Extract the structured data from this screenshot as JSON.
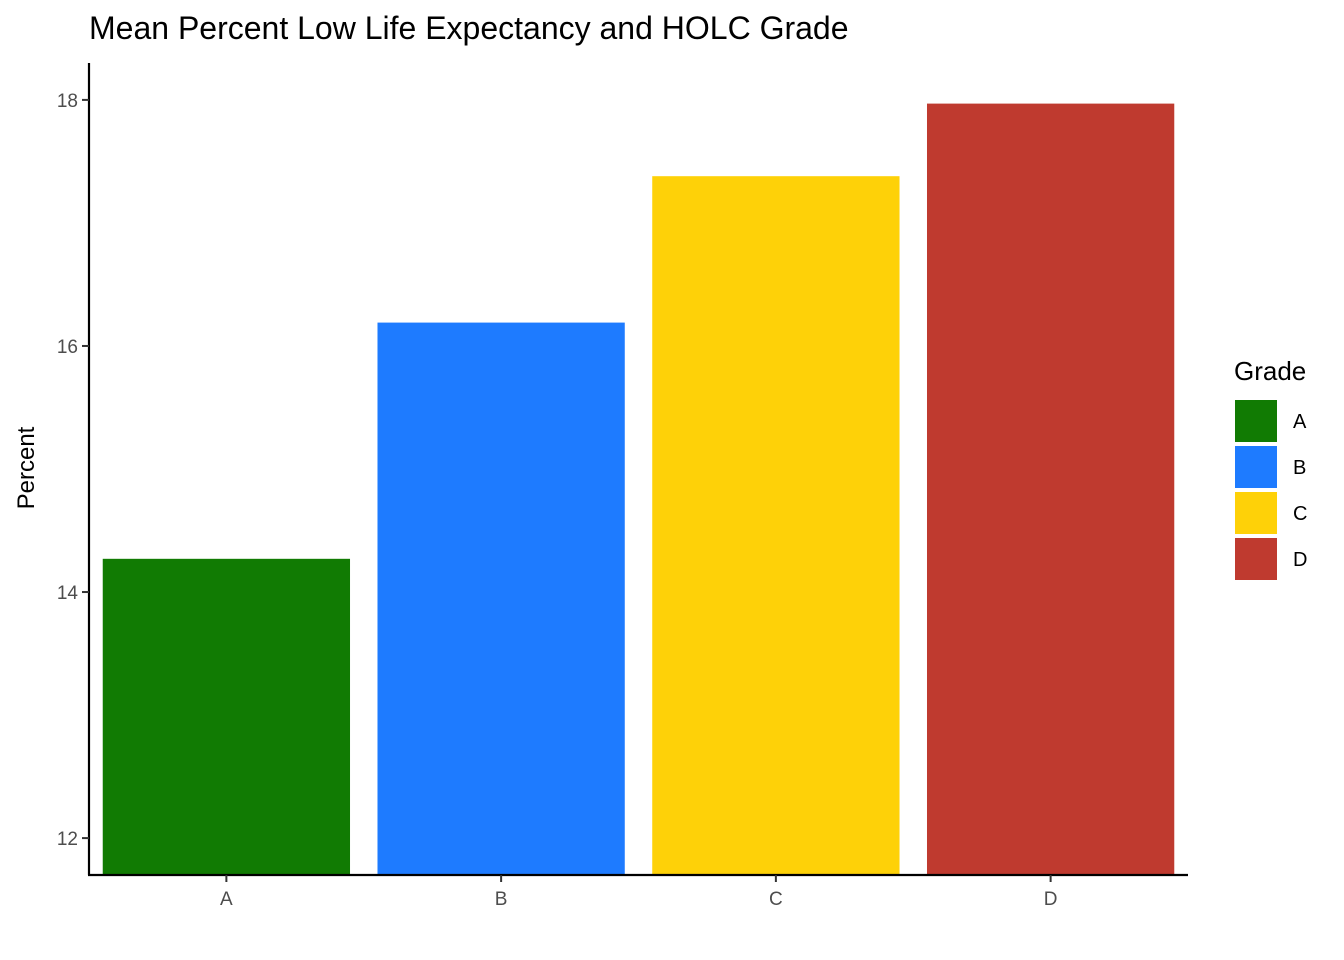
{
  "chart_data": {
    "type": "bar",
    "title": "Mean Percent Low Life Expectancy and HOLC Grade",
    "xlabel": "",
    "ylabel": "Percent",
    "categories": [
      "A",
      "B",
      "C",
      "D"
    ],
    "values": [
      14.27,
      16.19,
      17.38,
      17.97
    ],
    "colors": [
      "#117b03",
      "#1e7bff",
      "#fed108",
      "#bf3a2f"
    ],
    "ylim": [
      11.7,
      18.3
    ],
    "yticks": [
      12,
      14,
      16,
      18
    ],
    "grid": false,
    "legend": {
      "title": "Grade",
      "position": "right",
      "entries": [
        "A",
        "B",
        "C",
        "D"
      ]
    }
  }
}
